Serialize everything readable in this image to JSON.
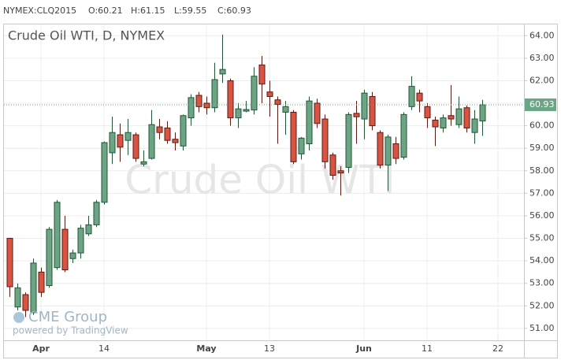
{
  "header": {
    "symbol": "NYMEX:CLQ2015",
    "open": "O:60.21",
    "high": "H:61.15",
    "low": "L:59.55",
    "close": "C:60.93"
  },
  "chart_data": {
    "type": "candlestick",
    "title": "Crude Oil WTI, D, NYMEX",
    "watermark": "Crude Oil WTI",
    "brand": "CME Group",
    "powered_by": "powered by TradingView",
    "last_price_label": "60.93",
    "up_color": "#6ba583",
    "down_color": "#d75442",
    "grid": true,
    "categories": [
      null,
      null,
      null,
      null,
      "Apr",
      null,
      null,
      null,
      null,
      null,
      null,
      null,
      "14",
      null,
      null,
      null,
      null,
      null,
      null,
      null,
      null,
      null,
      null,
      null,
      null,
      "May",
      null,
      null,
      null,
      null,
      null,
      null,
      null,
      "13",
      null,
      null,
      null,
      null,
      null,
      null,
      null,
      null,
      null,
      null,
      null,
      "Jun",
      null,
      null,
      null,
      null,
      null,
      null,
      null,
      "11",
      null,
      null,
      null,
      null,
      null,
      null,
      null,
      null,
      "22"
    ],
    "open": [
      55.0,
      51.95,
      52.5,
      51.7,
      53.5,
      52.9,
      53.7,
      55.4,
      54.1,
      54.35,
      55.2,
      55.6,
      56.6,
      58.8,
      59.6,
      59.35,
      59.6,
      58.3,
      58.55,
      59.95,
      59.9,
      59.4,
      59.1,
      60.35,
      61.35,
      61.0,
      60.8,
      62.3,
      62.0,
      60.35,
      60.65,
      60.7,
      62.7,
      61.5,
      61.15,
      60.6,
      60.6,
      58.75,
      59.2,
      61.0,
      60.3,
      58.7,
      58.0,
      58.15,
      60.55,
      60.3,
      61.3,
      59.7,
      58.25,
      59.2,
      58.6,
      60.85,
      61.45,
      60.85,
      60.25,
      59.9,
      60.45,
      60.05,
      60.8,
      59.7,
      60.21,
      null,
      null
    ],
    "high": [
      55.0,
      53.0,
      52.6,
      54.1,
      53.7,
      55.5,
      56.7,
      56.0,
      54.5,
      55.6,
      56.0,
      56.7,
      59.3,
      60.4,
      60.1,
      60.3,
      59.7,
      58.9,
      60.7,
      60.3,
      60.2,
      59.7,
      60.5,
      61.4,
      61.5,
      61.3,
      62.8,
      64.05,
      62.1,
      61.0,
      61.1,
      62.6,
      63.1,
      62.0,
      61.3,
      61.1,
      60.7,
      59.5,
      61.3,
      61.2,
      60.5,
      58.8,
      58.2,
      60.6,
      61.1,
      61.6,
      61.5,
      59.8,
      59.6,
      59.5,
      60.6,
      62.2,
      61.6,
      61.0,
      60.4,
      60.5,
      61.8,
      61.3,
      60.9,
      60.7,
      61.15,
      null,
      null
    ],
    "low": [
      52.4,
      51.8,
      51.5,
      51.6,
      52.4,
      52.8,
      53.6,
      53.5,
      53.9,
      54.1,
      55.1,
      55.5,
      56.5,
      58.3,
      58.4,
      58.7,
      58.4,
      58.2,
      58.5,
      59.4,
      59.2,
      58.9,
      58.9,
      60.0,
      60.6,
      60.5,
      60.6,
      61.9,
      60.0,
      59.9,
      60.6,
      60.5,
      61.0,
      60.4,
      59.2,
      59.6,
      58.3,
      58.5,
      58.9,
      59.9,
      58.1,
      57.6,
      56.9,
      57.9,
      59.2,
      59.4,
      59.8,
      58.1,
      57.1,
      58.3,
      58.5,
      60.7,
      60.6,
      59.9,
      59.1,
      59.7,
      60.0,
      59.9,
      59.7,
      59.2,
      59.55,
      null,
      null
    ],
    "close": [
      52.85,
      52.8,
      51.8,
      53.9,
      52.6,
      55.4,
      56.6,
      53.6,
      54.35,
      55.45,
      55.6,
      56.6,
      59.25,
      59.7,
      59.05,
      59.7,
      58.55,
      58.4,
      60.05,
      59.7,
      59.35,
      59.25,
      60.45,
      61.25,
      60.85,
      60.8,
      62.05,
      62.5,
      60.35,
      60.75,
      60.72,
      62.2,
      61.85,
      61.3,
      60.95,
      60.85,
      58.4,
      59.45,
      61.1,
      60.1,
      58.4,
      57.8,
      57.9,
      60.5,
      60.4,
      61.45,
      60.0,
      58.25,
      59.5,
      58.55,
      60.5,
      61.75,
      61.1,
      60.35,
      59.95,
      60.35,
      60.3,
      60.75,
      59.9,
      60.3,
      60.93,
      null,
      null
    ],
    "ylim": [
      50.47,
      64.5
    ],
    "yticks": [
      {
        "value": 51,
        "label": "51.00"
      },
      {
        "value": 52,
        "label": "52.00"
      },
      {
        "value": 53,
        "label": "53.00"
      },
      {
        "value": 54,
        "label": "54.00"
      },
      {
        "value": 55,
        "label": "55.00"
      },
      {
        "value": 56,
        "label": "56.00"
      },
      {
        "value": 57,
        "label": "57.00"
      },
      {
        "value": 58,
        "label": "58.00"
      },
      {
        "value": 59,
        "label": "59.00"
      },
      {
        "value": 60,
        "label": "60.00"
      },
      {
        "value": 61,
        "label": "61.00"
      },
      {
        "value": 62,
        "label": "62.00"
      },
      {
        "value": 63,
        "label": "63.00"
      },
      {
        "value": 64,
        "label": "64.00"
      }
    ]
  }
}
